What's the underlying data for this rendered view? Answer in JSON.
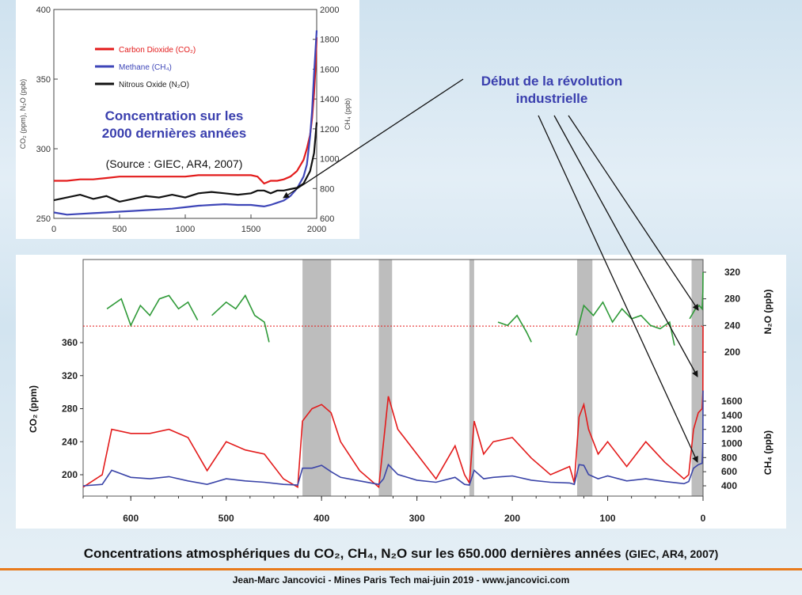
{
  "chart_data": [
    {
      "type": "line",
      "title": "Concentration sur les 2000 dernières années",
      "subtitle": "(Source : GIEC, AR4, 2007)",
      "xlim": [
        0,
        2000
      ],
      "x_ticks": [
        "0",
        "500",
        "1000",
        "1500",
        "2000"
      ],
      "left_axis": {
        "label": "CO₂ (ppm), N₂O (ppb)",
        "range": [
          250,
          400
        ],
        "ticks": [
          "250",
          "300",
          "350",
          "400"
        ]
      },
      "right_axis": {
        "label": "CH₄ (ppb)",
        "range": [
          600,
          2000
        ],
        "ticks": [
          "600",
          "800",
          "1000",
          "1200",
          "1400",
          "1600",
          "1800",
          "2000"
        ]
      },
      "legend_position": "top-left",
      "series": [
        {
          "name": "Carbon Dioxide (CO₂)",
          "color": "#e31b1b",
          "axis": "left",
          "x": [
            0,
            100,
            200,
            300,
            400,
            500,
            600,
            700,
            800,
            900,
            1000,
            1100,
            1200,
            1300,
            1400,
            1500,
            1550,
            1600,
            1650,
            1700,
            1750,
            1800,
            1850,
            1900,
            1925,
            1950,
            1965,
            1980,
            1990,
            2000
          ],
          "y": [
            277,
            277,
            278,
            278,
            279,
            280,
            280,
            280,
            280,
            280,
            280,
            281,
            281,
            281,
            281,
            281,
            280,
            275,
            277,
            277,
            278,
            280,
            284,
            292,
            300,
            310,
            322,
            340,
            356,
            380
          ]
        },
        {
          "name": "Methane (CH₄)",
          "color": "#3e46b8",
          "axis": "right",
          "x": [
            0,
            100,
            200,
            300,
            400,
            500,
            600,
            700,
            800,
            900,
            1000,
            1100,
            1200,
            1300,
            1400,
            1500,
            1550,
            1600,
            1650,
            1700,
            1750,
            1800,
            1850,
            1900,
            1925,
            1950,
            1965,
            1980,
            1990,
            2000
          ],
          "y": [
            640,
            625,
            630,
            635,
            640,
            645,
            650,
            655,
            660,
            665,
            675,
            685,
            690,
            695,
            690,
            690,
            685,
            680,
            690,
            705,
            720,
            750,
            800,
            880,
            960,
            1150,
            1320,
            1570,
            1710,
            1860
          ]
        },
        {
          "name": "Nitrous Oxide (N₂O)",
          "color": "#111111",
          "axis": "left",
          "x": [
            0,
            100,
            200,
            300,
            400,
            500,
            600,
            700,
            800,
            900,
            1000,
            1100,
            1200,
            1300,
            1400,
            1500,
            1550,
            1600,
            1650,
            1700,
            1750,
            1800,
            1850,
            1900,
            1950,
            1980,
            2000
          ],
          "y": [
            263,
            265,
            267,
            264,
            266,
            262,
            264,
            266,
            265,
            267,
            265,
            268,
            269,
            268,
            267,
            268,
            270,
            270,
            268,
            270,
            270,
            271,
            272,
            275,
            284,
            297,
            319
          ]
        }
      ]
    },
    {
      "type": "line",
      "title": "Concentrations atmosphériques du CO₂, CH₄, N₂O sur les 650.000 dernières années",
      "x_axis": {
        "reversed": true,
        "ticks": [
          "600",
          "500",
          "400",
          "300",
          "200",
          "100",
          "0"
        ],
        "xlim": [
          650,
          0
        ]
      },
      "axes": [
        {
          "label": "CO₂ (ppm)",
          "side": "left",
          "ticks": [
            "200",
            "240",
            "280",
            "320",
            "360"
          ]
        },
        {
          "label": "N₂O (ppb)",
          "side": "right",
          "ticks": [
            "200",
            "240",
            "280",
            "320"
          ]
        },
        {
          "label": "CH₄ (ppb)",
          "side": "right",
          "ticks": [
            "400",
            "600",
            "800",
            "1000",
            "1200",
            "1400",
            "1600"
          ]
        }
      ],
      "interglacial_bands": [
        [
          420,
          390
        ],
        [
          340,
          326
        ],
        [
          245,
          240
        ],
        [
          132,
          116
        ],
        [
          12,
          0
        ]
      ],
      "series": [
        {
          "name": "CO₂",
          "color": "#e31b1b",
          "axis": "CO₂ (ppm)",
          "x": [
            650,
            630,
            620,
            600,
            580,
            560,
            540,
            520,
            500,
            480,
            460,
            440,
            425,
            420,
            410,
            400,
            390,
            380,
            360,
            340,
            335,
            330,
            320,
            300,
            280,
            260,
            250,
            245,
            240,
            230,
            220,
            200,
            180,
            160,
            140,
            135,
            130,
            125,
            120,
            110,
            100,
            80,
            60,
            40,
            20,
            15,
            10,
            5,
            1,
            0.2,
            0
          ],
          "y": [
            185,
            200,
            255,
            250,
            250,
            255,
            245,
            205,
            240,
            230,
            225,
            195,
            185,
            265,
            280,
            285,
            275,
            240,
            205,
            185,
            240,
            295,
            255,
            225,
            195,
            235,
            200,
            190,
            265,
            225,
            240,
            245,
            220,
            200,
            210,
            190,
            270,
            285,
            255,
            225,
            240,
            210,
            240,
            215,
            195,
            200,
            255,
            275,
            280,
            300,
            380
          ]
        },
        {
          "name": "CH₄",
          "color": "#3a44a8",
          "axis": "CH₄ (ppb)",
          "x": [
            650,
            630,
            620,
            600,
            580,
            560,
            540,
            520,
            500,
            480,
            460,
            440,
            425,
            420,
            410,
            400,
            390,
            380,
            360,
            340,
            335,
            330,
            320,
            300,
            280,
            260,
            250,
            245,
            240,
            230,
            220,
            200,
            180,
            160,
            140,
            135,
            130,
            125,
            120,
            110,
            100,
            80,
            60,
            40,
            20,
            15,
            10,
            5,
            1,
            0.2,
            0
          ],
          "y": [
            400,
            420,
            620,
            520,
            500,
            530,
            470,
            420,
            500,
            470,
            450,
            420,
            410,
            650,
            650,
            690,
            600,
            520,
            470,
            420,
            500,
            700,
            560,
            480,
            450,
            520,
            420,
            410,
            620,
            500,
            520,
            540,
            480,
            450,
            440,
            420,
            700,
            690,
            560,
            500,
            540,
            470,
            500,
            460,
            430,
            460,
            650,
            700,
            720,
            1000,
            1750
          ]
        },
        {
          "name": "N₂O",
          "color": "#2f9a38",
          "axis": "N₂O (ppb)",
          "segments": [
            {
              "x": [
                625,
                610,
                600,
                590,
                580,
                570,
                560,
                550,
                540,
                530
              ],
              "y": [
                265,
                280,
                240,
                270,
                255,
                280,
                285,
                265,
                275,
                248
              ]
            },
            {
              "x": [
                515,
                500,
                490,
                480,
                470,
                460,
                455
              ],
              "y": [
                255,
                275,
                265,
                285,
                255,
                245,
                215
              ]
            },
            {
              "x": [
                215,
                205,
                195,
                185,
                180
              ],
              "y": [
                245,
                240,
                255,
                230,
                215
              ]
            },
            {
              "x": [
                133,
                125,
                115,
                105,
                95,
                85,
                75,
                65,
                55,
                45,
                35,
                30
              ],
              "y": [
                225,
                270,
                255,
                275,
                245,
                265,
                250,
                255,
                240,
                235,
                245,
                210
              ]
            },
            {
              "x": [
                14,
                8,
                4,
                1,
                0.2,
                0
              ],
              "y": [
                250,
                265,
                270,
                265,
                290,
                320
              ]
            }
          ]
        }
      ]
    }
  ],
  "annotation": {
    "text_line1": "Début de la révolution",
    "text_line2": "industrielle",
    "color": "#3a3fae"
  },
  "caption": {
    "text": "Concentrations atmosphériques du CO₂, CH₄, N₂O sur les 650.000 dernières années",
    "source": "(GIEC, AR4, 2007)"
  },
  "footer": {
    "text": "Jean-Marc Jancovici - Mines Paris Tech mai-juin 2019 - www.jancovici.com"
  },
  "colors": {
    "accent_rule": "#e87a1c",
    "band": "#bdbdbd"
  }
}
